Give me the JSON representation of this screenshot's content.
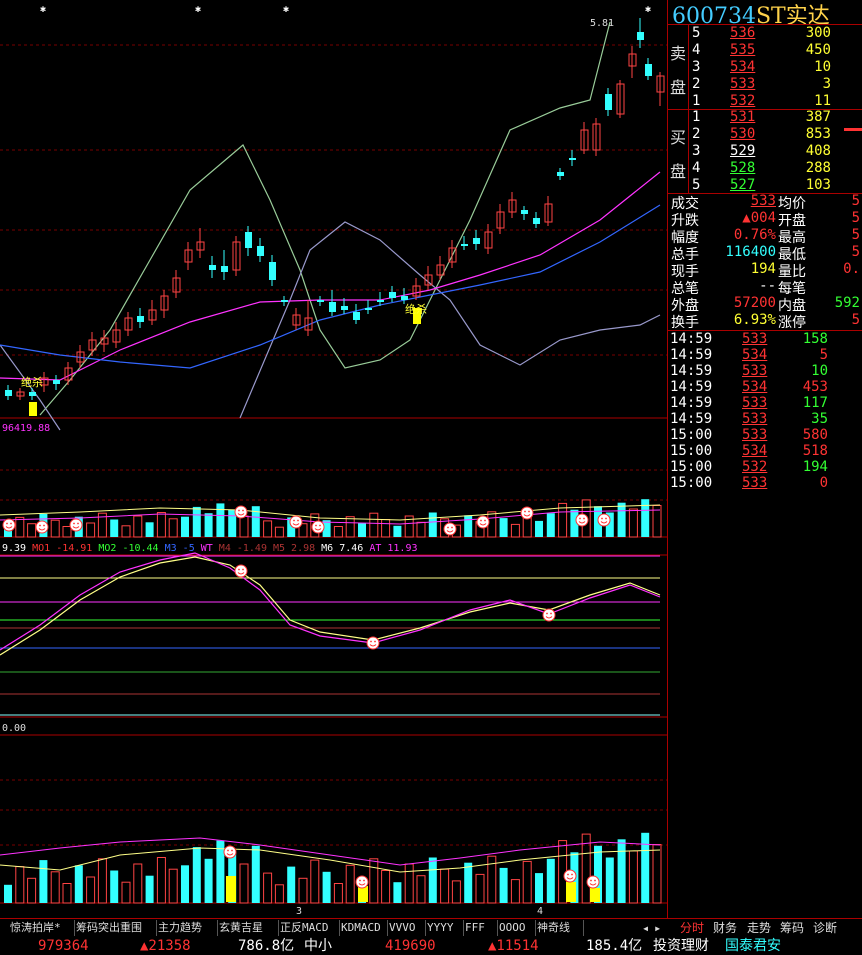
{
  "header": {
    "code": "600734",
    "name": "ST实达"
  },
  "chart": {
    "peak_label": "5.81",
    "signal_labels": [
      "绝杀",
      "绝杀"
    ],
    "vol_label": "96419.88",
    "indicator_line": [
      {
        "t": "9.39",
        "c": "#ffffff"
      },
      {
        "t": "MO1",
        "c": "#ff3333"
      },
      {
        "t": "-14.91",
        "c": "#ff3333"
      },
      {
        "t": "MO2",
        "c": "#33ff33"
      },
      {
        "t": "-10.44",
        "c": "#33ff33"
      },
      {
        "t": "M3",
        "c": "#3366ff"
      },
      {
        "t": "-5",
        "c": "#3366ff"
      },
      {
        "t": "WT",
        "c": "#ff33ff"
      },
      {
        "t": "M4",
        "c": "#aa3333"
      },
      {
        "t": "-1.49",
        "c": "#aa3333"
      },
      {
        "t": "M5",
        "c": "#aa3333"
      },
      {
        "t": "2.98",
        "c": "#aa3333"
      },
      {
        "t": "M6",
        "c": "#ffffff"
      },
      {
        "t": "7.46",
        "c": "#ffffff"
      },
      {
        "t": "AT",
        "c": "#ff33ff"
      },
      {
        "t": "11.93",
        "c": "#ff33ff"
      }
    ],
    "lower_label": "0.00",
    "x_labels": [
      "3",
      "4"
    ]
  },
  "orderbook": {
    "sell_label": [
      "卖",
      "盘"
    ],
    "buy_label": [
      "买",
      "盘"
    ],
    "sells": [
      {
        "n": "5",
        "p": "536",
        "v": "300"
      },
      {
        "n": "4",
        "p": "535",
        "v": "450"
      },
      {
        "n": "3",
        "p": "534",
        "v": "10"
      },
      {
        "n": "2",
        "p": "533",
        "v": "3"
      },
      {
        "n": "1",
        "p": "532",
        "v": "11"
      }
    ],
    "buys": [
      {
        "n": "1",
        "p": "531",
        "v": "387"
      },
      {
        "n": "2",
        "p": "530",
        "v": "853"
      },
      {
        "n": "3",
        "p": "529",
        "v": "408"
      },
      {
        "n": "4",
        "p": "528",
        "v": "288"
      },
      {
        "n": "5",
        "p": "527",
        "v": "103"
      }
    ]
  },
  "stats": [
    {
      "l": "成交",
      "v": "533",
      "l2": "均价",
      "v2": "5"
    },
    {
      "l": "升跌",
      "v": "▲004",
      "l2": "开盘",
      "v2": "5"
    },
    {
      "l": "幅度",
      "v": "0.76%",
      "l2": "最高",
      "v2": "5"
    },
    {
      "l": "总手",
      "v": "116400",
      "l2": "最低",
      "v2": "5"
    },
    {
      "l": "现手",
      "v": "194",
      "l2": "量比",
      "v2": "0."
    },
    {
      "l": "总笔",
      "v": "--",
      "l2": "每笔",
      "v2": ""
    },
    {
      "l": "外盘",
      "v": "57200",
      "l2": "内盘",
      "v2": "592"
    },
    {
      "l": "换手",
      "v": "6.93%",
      "l2": "涨停",
      "v2": "5"
    }
  ],
  "ticks": [
    {
      "t": "14:59",
      "p": "533",
      "v": "158",
      "vc": "green"
    },
    {
      "t": "14:59",
      "p": "534",
      "v": "5",
      "vc": "red"
    },
    {
      "t": "14:59",
      "p": "533",
      "v": "10",
      "vc": "green"
    },
    {
      "t": "14:59",
      "p": "534",
      "v": "453",
      "vc": "red"
    },
    {
      "t": "14:59",
      "p": "533",
      "v": "117",
      "vc": "green"
    },
    {
      "t": "14:59",
      "p": "533",
      "v": "35",
      "vc": "green"
    },
    {
      "t": "15:00",
      "p": "533",
      "v": "580",
      "vc": "red"
    },
    {
      "t": "15:00",
      "p": "534",
      "v": "518",
      "vc": "red"
    },
    {
      "t": "15:00",
      "p": "532",
      "v": "194",
      "vc": "green"
    },
    {
      "t": "15:00",
      "p": "533",
      "v": "0",
      "vc": "red"
    }
  ],
  "tabs": [
    "惊涛拍岸*",
    "筹码突出重围",
    "主力趋势",
    "玄黄吉星",
    "正反MACD",
    "KDMACD",
    "VVVO",
    "YYYY",
    "FFF",
    "OOOO",
    "神奇线"
  ],
  "right_tabs": [
    "分时",
    "财务",
    "走势",
    "筹码",
    "诊断"
  ],
  "status": {
    "v1": "979364",
    "v2": "▲21358",
    "v3": "786.8亿",
    "v4": "中小",
    "v5": "419690",
    "v6": "▲11514",
    "v7": "185.4亿",
    "v8": "投资理财",
    "v9": "国泰君安"
  }
}
